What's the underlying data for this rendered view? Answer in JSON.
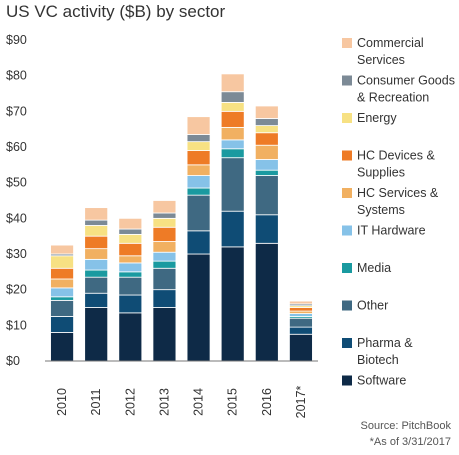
{
  "chart_data": {
    "type": "bar",
    "stacked": true,
    "title": "US VC activity ($B) by sector",
    "categories": [
      "2010",
      "2011",
      "2012",
      "2013",
      "2014",
      "2015",
      "2016",
      "2017*"
    ],
    "y_ticks": [
      "$0",
      "$10",
      "$20",
      "$30",
      "$40",
      "$50",
      "$60",
      "$70",
      "$80",
      "$90"
    ],
    "ylim": [
      0,
      90
    ],
    "grid": false,
    "legend_position": "right",
    "series": [
      {
        "name": "Software",
        "color": "#0e2a47",
        "values": [
          8,
          15,
          13.5,
          15,
          30,
          32,
          33,
          7.5
        ]
      },
      {
        "name": "Pharma & Biotech",
        "color": "#0f4c75",
        "values": [
          4.5,
          4,
          5,
          5,
          6.5,
          10,
          8,
          2
        ]
      },
      {
        "name": "Other",
        "color": "#3f6982",
        "values": [
          4.5,
          4.5,
          5,
          6,
          10,
          15,
          11,
          2.5
        ]
      },
      {
        "name": "Media",
        "color": "#1a9aa0",
        "values": [
          1,
          2,
          1.5,
          2,
          2,
          2.5,
          1.5,
          0.5
        ]
      },
      {
        "name": "IT Hardware",
        "color": "#86c2e8",
        "values": [
          2.5,
          3,
          2.5,
          2.5,
          3.5,
          2.5,
          3,
          0.8
        ]
      },
      {
        "name": "HC Services & Systems",
        "color": "#f1b061",
        "values": [
          2.5,
          3,
          2,
          3,
          3,
          3.5,
          4,
          0.7
        ]
      },
      {
        "name": "HC Devices & Supplies",
        "color": "#ee7b26",
        "values": [
          3,
          3.5,
          3.5,
          4,
          4,
          4.5,
          3.5,
          1
        ]
      },
      {
        "name": "Energy",
        "color": "#f7e183",
        "values": [
          3.5,
          3,
          2.5,
          2.5,
          2.5,
          2.5,
          2,
          0.5
        ]
      },
      {
        "name": "Consumer Goods & Recreation",
        "color": "#7c8a96",
        "values": [
          0.5,
          1.5,
          1.5,
          1.5,
          2,
          3,
          2,
          0.5
        ]
      },
      {
        "name": "Commercial Services",
        "color": "#f7c7a1",
        "values": [
          2.5,
          3.5,
          3,
          3.5,
          5,
          5,
          3.5,
          0.8
        ]
      }
    ],
    "legend": [
      {
        "lines": [
          "Commercial",
          "Services"
        ],
        "color": "#f7c7a1"
      },
      {
        "lines": [
          "Consumer Goods",
          "& Recreation"
        ],
        "color": "#7c8a96"
      },
      {
        "lines": [
          "Energy"
        ],
        "color": "#f7e183"
      },
      {
        "lines": [
          "HC Devices &",
          "Supplies"
        ],
        "color": "#ee7b26"
      },
      {
        "lines": [
          "HC Services &",
          "Systems"
        ],
        "color": "#f1b061"
      },
      {
        "lines": [
          "IT Hardware"
        ],
        "color": "#86c2e8"
      },
      {
        "lines": [
          "Media"
        ],
        "color": "#1a9aa0"
      },
      {
        "lines": [
          "Other"
        ],
        "color": "#3f6982"
      },
      {
        "lines": [
          "Pharma &",
          "Biotech"
        ],
        "color": "#0f4c75"
      },
      {
        "lines": [
          "Software"
        ],
        "color": "#0e2a47"
      }
    ],
    "source": "Source: PitchBook",
    "footnote": "*As of 3/31/2017"
  }
}
